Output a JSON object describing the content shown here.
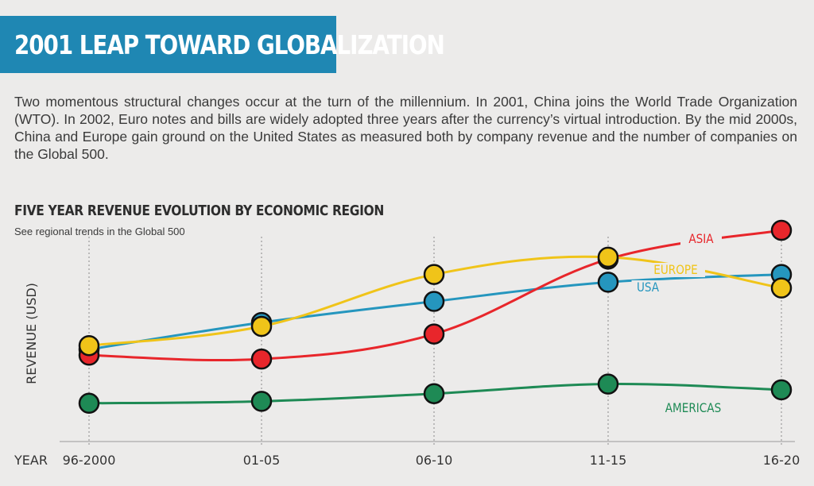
{
  "banner": {
    "title": "2001 LEAP TOWARD GLOBALIZATION",
    "background": "#1f87b3"
  },
  "intro": "Two momentous structural changes occur at the turn of the millennium. In 2001, China joins the World Trade Organization (WTO). In 2002, Euro notes and bills are widely adopted three years after the currency’s virtual introduction. By the mid 2000s, China and Europe gain ground on the United States as measured both by company revenue and the number of companies on the Global 500.",
  "chart_data": {
    "type": "line",
    "title": "FIVE YEAR REVENUE EVOLUTION BY ECONOMIC REGION",
    "subtitle": "See regional trends in the Global 500",
    "xlabel": "YEAR",
    "ylabel": "REVENUE (USD)",
    "categories": [
      "96-2000",
      "01-05",
      "06-10",
      "11-15",
      "16-20"
    ],
    "ylim": [
      0,
      100
    ],
    "y_ticks_shown": false,
    "grid": "vertical dotted lines at each category",
    "series": [
      {
        "name": "AMERICAS",
        "color": "#1e8a55",
        "values": [
          10,
          11,
          15,
          20,
          17
        ]
      },
      {
        "name": "USA",
        "color": "#2596be",
        "values": [
          38,
          52,
          63,
          73,
          77
        ]
      },
      {
        "name": "ASIA",
        "color": "#e8262b",
        "values": [
          35,
          33,
          46,
          85,
          100
        ]
      },
      {
        "name": "EUROPE",
        "color": "#f0c419",
        "values": [
          40,
          50,
          77,
          86,
          70
        ]
      }
    ]
  }
}
